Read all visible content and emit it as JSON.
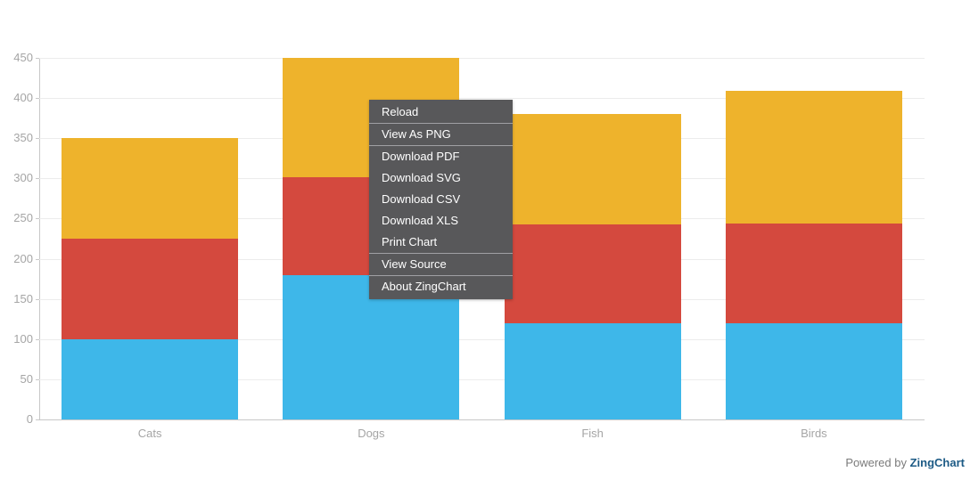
{
  "chart_data": {
    "type": "bar",
    "stacked": true,
    "title": "",
    "xlabel": "",
    "ylabel": "",
    "categories": [
      "Cats",
      "Dogs",
      "Fish",
      "Birds"
    ],
    "series": [
      {
        "name": "blue",
        "color": "#3eb7e9",
        "values": [
          100,
          180,
          120,
          120
        ]
      },
      {
        "name": "red",
        "color": "#d4493e",
        "values": [
          125,
          122,
          123,
          124
        ]
      },
      {
        "name": "orange",
        "color": "#eeb32c",
        "values": [
          125,
          148,
          137,
          165
        ]
      }
    ],
    "stack_totals": [
      350,
      450,
      380,
      409
    ],
    "ylim": [
      0,
      450
    ],
    "yticks": [
      0,
      50,
      100,
      150,
      200,
      250,
      300,
      350,
      400,
      450
    ],
    "grid": true,
    "legend": false
  },
  "context_menu": {
    "items": [
      {
        "label": "Reload",
        "separator_after": true
      },
      {
        "label": "View As PNG",
        "separator_after": true
      },
      {
        "label": "Download PDF",
        "separator_after": false
      },
      {
        "label": "Download SVG",
        "separator_after": false
      },
      {
        "label": "Download CSV",
        "separator_after": false
      },
      {
        "label": "Download XLS",
        "separator_after": false
      },
      {
        "label": "Print Chart",
        "separator_after": true
      },
      {
        "label": "View Source",
        "separator_after": true
      },
      {
        "label": "About ZingChart",
        "separator_after": false
      }
    ]
  },
  "footer": {
    "powered_by": "Powered by",
    "brand": "ZingChart"
  }
}
